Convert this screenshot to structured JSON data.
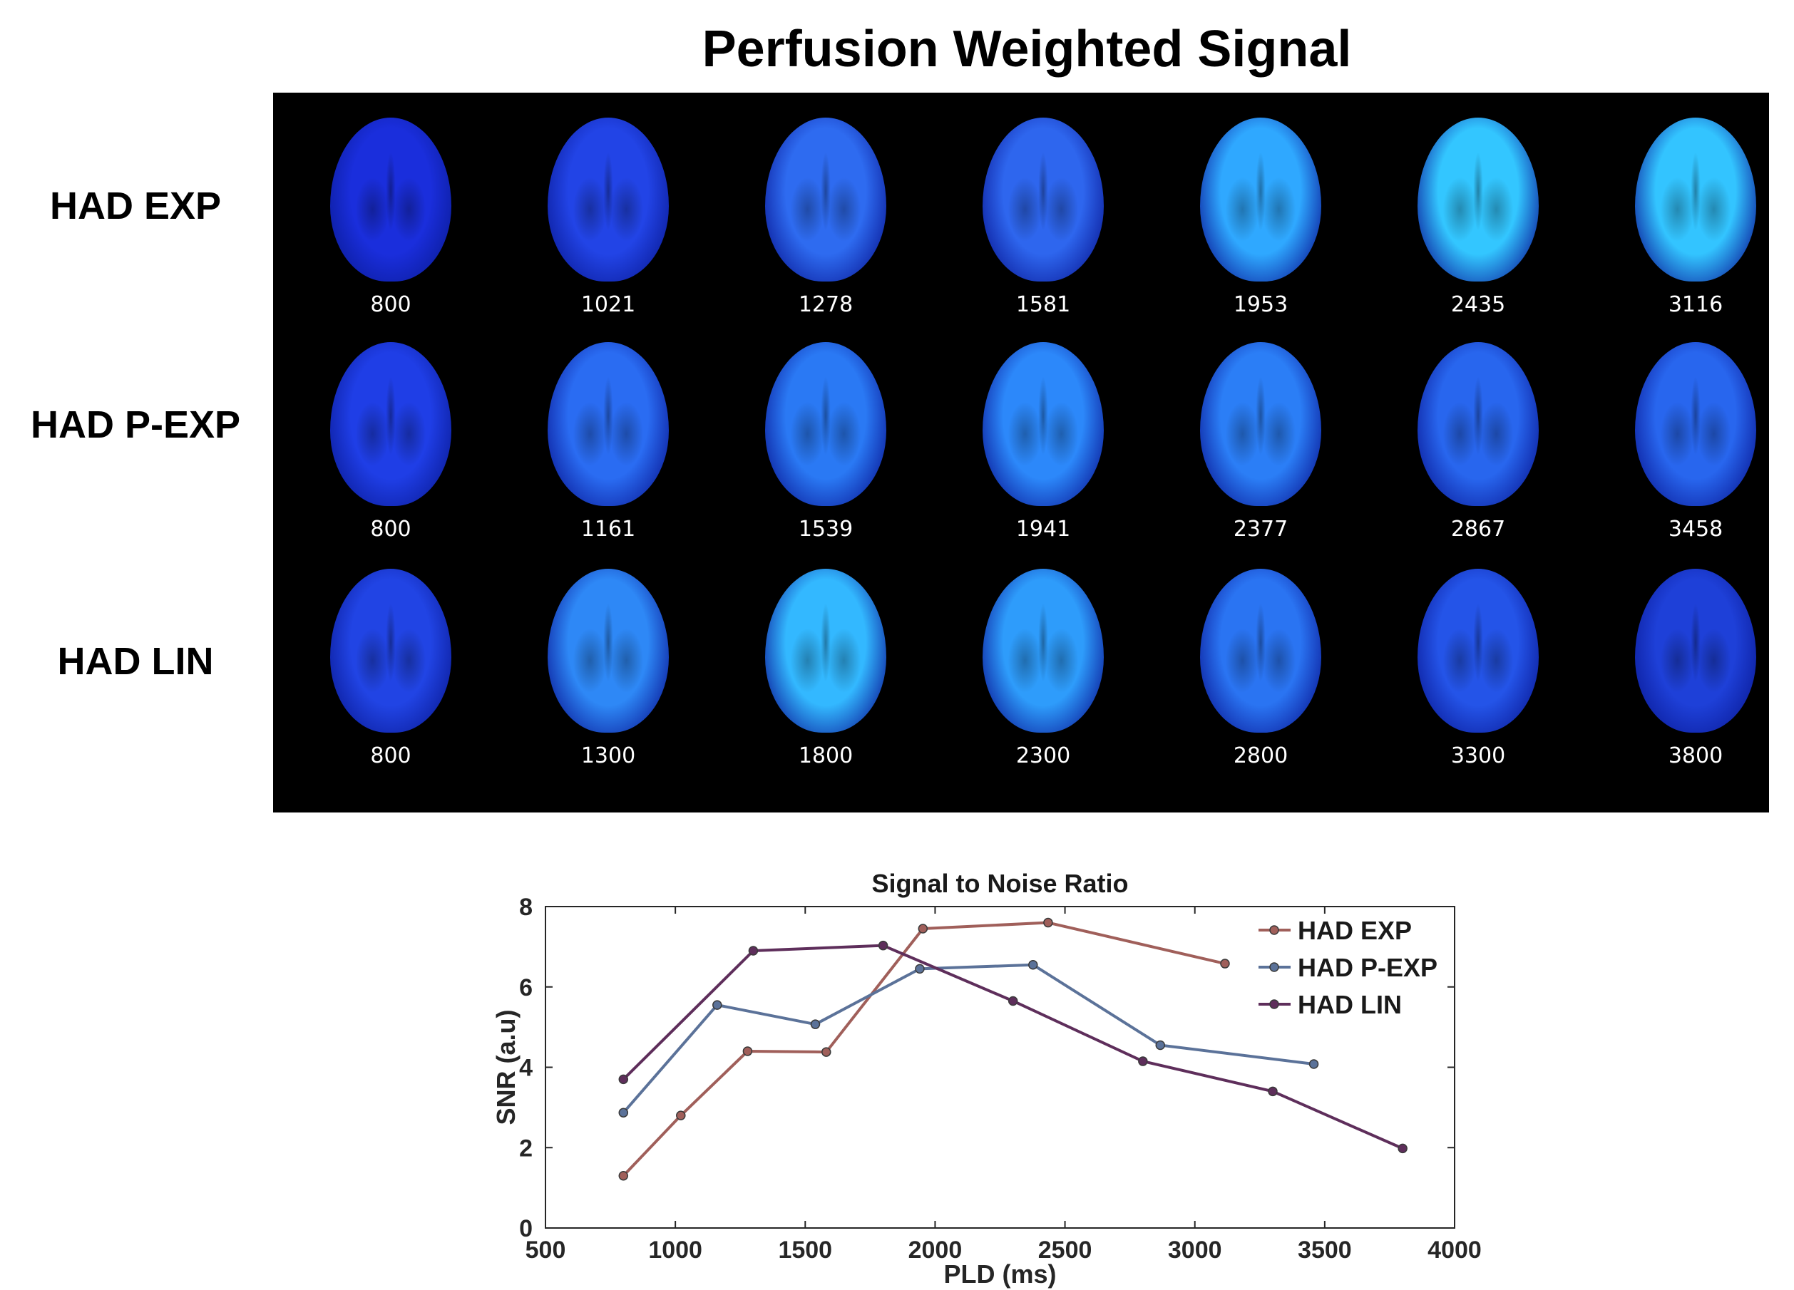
{
  "figure_title": "Perfusion Weighted Signal",
  "image_panel": {
    "rows": [
      {
        "label": "HAD EXP",
        "plds": [
          "800",
          "1021",
          "1278",
          "1581",
          "1953",
          "2435",
          "3116"
        ],
        "colors": [
          "#1a2edc",
          "#2244e6",
          "#2e6bf0",
          "#2e66ee",
          "#2fa8ff",
          "#33c6ff",
          "#33c4ff"
        ]
      },
      {
        "label": "HAD P-EXP",
        "plds": [
          "800",
          "1161",
          "1539",
          "1941",
          "2377",
          "2867",
          "3458"
        ],
        "colors": [
          "#1f3ee6",
          "#2a6cf2",
          "#2a79f4",
          "#2c88fa",
          "#2b7ef6",
          "#2866ee",
          "#2866ee"
        ]
      },
      {
        "label": "HAD LIN",
        "plds": [
          "800",
          "1300",
          "1800",
          "2300",
          "2800",
          "3300",
          "3800"
        ],
        "colors": [
          "#2144e4",
          "#2e88f6",
          "#33b8ff",
          "#2e9cfb",
          "#2a74f2",
          "#2454e8",
          "#1e40d8"
        ]
      }
    ]
  },
  "chart_data": {
    "type": "line",
    "title": "Signal to Noise Ratio",
    "xlabel": "PLD (ms)",
    "ylabel": "SNR (a.u)",
    "xlim": [
      500,
      4000
    ],
    "ylim": [
      0,
      8
    ],
    "xticks": [
      500,
      1000,
      1500,
      2000,
      2500,
      3000,
      3500,
      4000
    ],
    "yticks": [
      0,
      2,
      4,
      6,
      8
    ],
    "legend_position": "top-right",
    "series": [
      {
        "name": "HAD EXP",
        "color": "#a05f5a",
        "x": [
          800,
          1021,
          1278,
          1581,
          1953,
          2435,
          3116
        ],
        "y": [
          1.3,
          2.8,
          4.4,
          4.38,
          7.45,
          7.6,
          6.58
        ]
      },
      {
        "name": "HAD P-EXP",
        "color": "#5b7299",
        "x": [
          800,
          1161,
          1539,
          1941,
          2377,
          2867,
          3458
        ],
        "y": [
          2.87,
          5.55,
          5.07,
          6.45,
          6.55,
          4.55,
          4.08
        ]
      },
      {
        "name": "HAD LIN",
        "color": "#5e2e5b",
        "x": [
          800,
          1300,
          1800,
          2300,
          2800,
          3300,
          3800
        ],
        "y": [
          3.7,
          6.9,
          7.03,
          5.65,
          4.15,
          3.4,
          1.98
        ]
      }
    ]
  }
}
